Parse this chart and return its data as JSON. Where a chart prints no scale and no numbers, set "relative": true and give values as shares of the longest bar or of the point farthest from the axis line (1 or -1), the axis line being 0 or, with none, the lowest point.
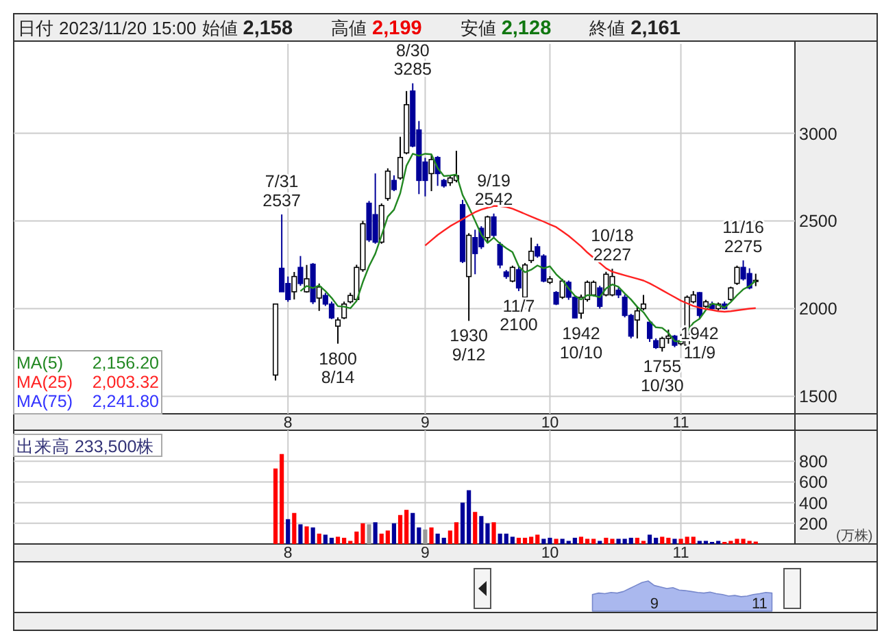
{
  "chart_data": [
    {
      "type": "candlestick",
      "annotations": [
        "日付 2023/11/20 15:00",
        "始値 2,158",
        "高値 2,199",
        "安値 2,128",
        "終値 2,161",
        {
          "text": "7/31\n2537",
          "y": 2537
        },
        {
          "text": "1800\n8/14",
          "y": 1800
        },
        {
          "text": "8/30\n3285",
          "y": 3285
        },
        {
          "text": "1930\n9/12",
          "y": 1930
        },
        {
          "text": "9/19\n2542",
          "y": 2542
        },
        {
          "text": "1942\n10/10",
          "y": 1942
        },
        {
          "text": "10/18\n2227",
          "y": 2227
        },
        {
          "text": "1755\n10/30",
          "y": 1755
        },
        {
          "text": "11/7\n2100",
          "y": 2100
        },
        {
          "text": "1942\n11/9",
          "y": 1942
        },
        {
          "text": "11/16\n2275",
          "y": 2275
        }
      ],
      "categories": [
        null,
        null,
        "8",
        null,
        null,
        null,
        null,
        null,
        null,
        null,
        null,
        null,
        null,
        null,
        null,
        null,
        null,
        null,
        null,
        null,
        null,
        null,
        null,
        null,
        "9",
        null,
        null,
        null,
        null,
        null,
        null,
        null,
        null,
        null,
        null,
        null,
        null,
        null,
        null,
        null,
        null,
        null,
        null,
        null,
        "10",
        null,
        null,
        null,
        null,
        null,
        null,
        null,
        null,
        null,
        null,
        null,
        null,
        null,
        null,
        null,
        null,
        null,
        null,
        null,
        null,
        "11",
        null,
        null,
        null,
        null,
        null,
        null,
        null,
        null,
        null,
        null,
        null,
        null
      ],
      "ohlc": [
        [
          1621,
          2026,
          1590,
          2026
        ],
        [
          2230,
          2537,
          2096,
          2096
        ],
        [
          2143,
          2183,
          2039,
          2052
        ],
        [
          2096,
          2209,
          2052,
          2183
        ],
        [
          2235,
          2300,
          2130,
          2143
        ],
        [
          2096,
          2249,
          2091,
          2170
        ],
        [
          2253,
          2260,
          2026,
          2039
        ],
        [
          2060,
          2143,
          1987,
          2123
        ],
        [
          2075,
          2090,
          2015,
          2026
        ],
        [
          2026,
          2040,
          1940,
          1947
        ],
        [
          1900,
          1950,
          1800,
          1935
        ],
        [
          1947,
          2040,
          1940,
          2026
        ],
        [
          2039,
          2090,
          2030,
          2075
        ],
        [
          2052,
          2250,
          2045,
          2235
        ],
        [
          2222,
          2500,
          2210,
          2484
        ],
        [
          2601,
          2614,
          2380,
          2392
        ],
        [
          2536,
          2771,
          2370,
          2379
        ],
        [
          2379,
          2600,
          2370,
          2588
        ],
        [
          2628,
          2800,
          2615,
          2784
        ],
        [
          2731,
          2760,
          2670,
          2679
        ],
        [
          2745,
          2980,
          2735,
          2862
        ],
        [
          2888,
          3241,
          2880,
          3163
        ],
        [
          3241,
          3285,
          2920,
          2927
        ],
        [
          3019,
          3070,
          2653,
          2731
        ],
        [
          2836,
          2860,
          2640,
          2731
        ],
        [
          2770,
          2880,
          2670,
          2850
        ],
        [
          2862,
          2870,
          2700,
          2770
        ],
        [
          2731,
          2740,
          2690,
          2700
        ],
        [
          2718,
          2760,
          2700,
          2745
        ],
        [
          2731,
          2900,
          2720,
          2758
        ],
        [
          2593,
          2620,
          2260,
          2269
        ],
        [
          2183,
          2430,
          1930,
          2418
        ],
        [
          2405,
          2450,
          2196,
          2314
        ],
        [
          2458,
          2470,
          2340,
          2353
        ],
        [
          2405,
          2530,
          2380,
          2523
        ],
        [
          2523,
          2542,
          2400,
          2418
        ],
        [
          2366,
          2380,
          2230,
          2249
        ],
        [
          2209,
          2220,
          2170,
          2183
        ],
        [
          2157,
          2245,
          2150,
          2235
        ],
        [
          2222,
          2240,
          2100,
          2118
        ],
        [
          2065,
          2260,
          2030,
          2249
        ],
        [
          2274,
          2405,
          2260,
          2327
        ],
        [
          2353,
          2370,
          2290,
          2300
        ],
        [
          2300,
          2310,
          2150,
          2157
        ],
        [
          2150,
          2185,
          2140,
          2170
        ],
        [
          2092,
          2100,
          2020,
          2026
        ],
        [
          2065,
          2170,
          2055,
          2157
        ],
        [
          2150,
          2160,
          2050,
          2065
        ],
        [
          2065,
          2070,
          1945,
          1947
        ],
        [
          1974,
          2080,
          1942,
          2065
        ],
        [
          2052,
          2160,
          2040,
          2150
        ],
        [
          2078,
          2160,
          2070,
          2150
        ],
        [
          2118,
          2130,
          2000,
          2013
        ],
        [
          2078,
          2210,
          2070,
          2196
        ],
        [
          2078,
          2227,
          2070,
          2183
        ],
        [
          2105,
          2120,
          2060,
          2078
        ],
        [
          2065,
          2080,
          1950,
          1961
        ],
        [
          1961,
          1970,
          1830,
          1843
        ],
        [
          1935,
          2013,
          1830,
          1987
        ],
        [
          2000,
          2078,
          1990,
          2026
        ],
        [
          1922,
          1930,
          1810,
          1830
        ],
        [
          1817,
          1830,
          1770,
          1778
        ],
        [
          1778,
          1840,
          1755,
          1830
        ],
        [
          1830,
          1880,
          1800,
          1843
        ],
        [
          1843,
          1850,
          1780,
          1791
        ],
        [
          1800,
          1870,
          1790,
          1817
        ],
        [
          1791,
          2075,
          1785,
          2065
        ],
        [
          2039,
          2100,
          2030,
          2078
        ],
        [
          2091,
          2095,
          1942,
          1961
        ],
        [
          2013,
          2050,
          2005,
          2039
        ],
        [
          2026,
          2040,
          1990,
          2000
        ],
        [
          2000,
          2035,
          1990,
          2026
        ],
        [
          2026,
          2040,
          1995,
          2000
        ],
        [
          2052,
          2125,
          2045,
          2118
        ],
        [
          2144,
          2245,
          2135,
          2235
        ],
        [
          2235,
          2275,
          2160,
          2170
        ],
        [
          2200,
          2230,
          2110,
          2118
        ],
        [
          2158,
          2199,
          2128,
          2161
        ]
      ],
      "colors": [
        "#ffffff",
        "#000099",
        "#000099",
        "#ffffff",
        "#000099",
        "#ffffff",
        "#000099",
        "#ffffff",
        "#000099",
        "#000099",
        "#ffffff",
        "#ffffff",
        "#ffffff",
        "#ffffff",
        "#ffffff",
        "#000099",
        "#000099",
        "#ffffff",
        "#ffffff",
        "#000099",
        "#ffffff",
        "#ffffff",
        "#000099",
        "#000099",
        "#000099",
        "#ffffff",
        "#000099",
        "#000099",
        "#ffffff",
        "#ffffff",
        "#000099",
        "#ffffff",
        "#000099",
        "#000099",
        "#ffffff",
        "#000099",
        "#000099",
        "#000099",
        "#ffffff",
        "#000099",
        "#ffffff",
        "#ffffff",
        "#000099",
        "#000099",
        "#ffffff",
        "#000099",
        "#ffffff",
        "#000099",
        "#000099",
        "#ffffff",
        "#ffffff",
        "#ffffff",
        "#000099",
        "#ffffff",
        "#ffffff",
        "#000099",
        "#000099",
        "#000099",
        "#ffffff",
        "#ffffff",
        "#000099",
        "#000099",
        "#ffffff",
        "#ffffff",
        "#000099",
        "#ffffff",
        "#ffffff",
        "#ffffff",
        "#000099",
        "#ffffff",
        "#000099",
        "#ffffff",
        "#000099",
        "#ffffff",
        "#ffffff",
        "#000099",
        "#000099",
        "#ffffff"
      ],
      "series": [
        {
          "name": "MA(5) 2,156.20",
          "type": "line",
          "color": "#228822",
          "values": [
            null,
            null,
            null,
            null,
            2100,
            2129,
            2117,
            2132,
            2100,
            2061,
            2014,
            2011,
            2002,
            2044,
            2151,
            2242,
            2313,
            2416,
            2525,
            2564,
            2658,
            2815,
            2883,
            2872,
            2883,
            2880,
            2802,
            2756,
            2759,
            2765,
            2648,
            2578,
            2501,
            2422,
            2375,
            2405,
            2371,
            2345,
            2322,
            2241,
            2207,
            2222,
            2246,
            2230,
            2241,
            2196,
            2162,
            2115,
            2073,
            2052,
            2077,
            2075,
            2065,
            2115,
            2138,
            2124,
            2086,
            2052,
            2010,
            1979,
            1929,
            1893,
            1890,
            1861,
            1814,
            1812,
            1869,
            1919,
            1942,
            1992,
            2029,
            2021,
            2005,
            2037,
            2076,
            2110,
            2128,
            2160
          ]
        },
        {
          "name": "MA(25) 2,003.32",
          "type": "line",
          "color": "#ff2222",
          "values": [
            null,
            null,
            null,
            null,
            null,
            null,
            null,
            null,
            null,
            null,
            null,
            null,
            null,
            null,
            null,
            null,
            null,
            null,
            null,
            null,
            null,
            null,
            null,
            null,
            2360,
            2390,
            2420,
            2445,
            2470,
            2490,
            2510,
            2530,
            2550,
            2565,
            2575,
            2585,
            2585,
            2580,
            2570,
            2555,
            2540,
            2525,
            2510,
            2496,
            2480,
            2465,
            2440,
            2415,
            2385,
            2355,
            2320,
            2290,
            2260,
            2230,
            2210,
            2200,
            2190,
            2180,
            2170,
            2160,
            2144,
            2125,
            2105,
            2085,
            2065,
            2045,
            2030,
            2015,
            2005,
            1998,
            1992,
            1985,
            1982,
            1985,
            1990,
            1995,
            2000,
            2003
          ]
        },
        {
          "name": "MA(75) 2,241.80",
          "type": "line",
          "color": "#3333ff",
          "values": [
            null,
            null,
            null,
            null,
            null,
            null,
            null,
            null,
            null,
            null,
            null,
            null,
            null,
            null,
            null,
            null,
            null,
            null,
            null,
            null,
            null,
            null,
            null,
            null,
            null,
            null,
            null,
            null,
            null,
            null,
            null,
            null,
            null,
            null,
            null,
            null,
            null,
            null,
            null,
            null,
            null,
            null,
            null,
            null,
            null,
            null,
            null,
            null,
            null,
            null,
            null,
            null,
            null,
            null,
            null,
            null,
            null,
            null,
            null,
            null,
            null,
            null,
            null,
            null,
            null,
            null,
            null,
            null,
            null,
            null,
            null,
            null,
            null,
            null,
            null,
            null,
            null,
            null
          ]
        }
      ],
      "ylim": [
        1400,
        3510
      ],
      "yticks": [
        1500,
        2000,
        2500,
        3000
      ],
      "grid": true,
      "legend": "bottom left"
    },
    {
      "type": "bar",
      "annotations": [
        "出来高 233,500株"
      ],
      "ylabel": "(万株)",
      "categories": [
        null,
        null,
        "8",
        null,
        null,
        null,
        null,
        null,
        null,
        null,
        null,
        null,
        null,
        null,
        null,
        null,
        null,
        null,
        null,
        null,
        null,
        null,
        null,
        null,
        "9",
        null,
        null,
        null,
        null,
        null,
        null,
        null,
        null,
        null,
        null,
        null,
        null,
        null,
        null,
        null,
        null,
        null,
        null,
        null,
        "10",
        null,
        null,
        null,
        null,
        null,
        null,
        null,
        null,
        null,
        null,
        null,
        null,
        null,
        null,
        null,
        null,
        null,
        null,
        null,
        null,
        "11",
        null,
        null,
        null,
        null,
        null,
        null,
        null,
        null,
        null,
        null,
        null,
        null
      ],
      "values": [
        730,
        870,
        240,
        300,
        190,
        170,
        160,
        100,
        90,
        60,
        70,
        60,
        30,
        120,
        200,
        190,
        210,
        100,
        130,
        200,
        280,
        330,
        300,
        160,
        140,
        160,
        100,
        60,
        130,
        210,
        400,
        520,
        310,
        270,
        200,
        210,
        100,
        100,
        70,
        60,
        60,
        70,
        90,
        50,
        60,
        50,
        50,
        30,
        60,
        70,
        50,
        50,
        30,
        60,
        50,
        50,
        50,
        60,
        60,
        30,
        90,
        60,
        70,
        60,
        50,
        50,
        70,
        70,
        30,
        30,
        20,
        30,
        20,
        30,
        50,
        50,
        30,
        23
      ],
      "colors": [
        "#ff0000",
        "#ff0000",
        "#000099",
        "#ff0000",
        "#000099",
        "#ff0000",
        "#000099",
        "#ff0000",
        "#000099",
        "#000099",
        "#ff0000",
        "#ff0000",
        "#ff0000",
        "#ff0000",
        "#ff0000",
        "#999999",
        "#000099",
        "#ff0000",
        "#ff0000",
        "#000099",
        "#ff0000",
        "#ff0000",
        "#000099",
        "#000099",
        "#999999",
        "#ff0000",
        "#000099",
        "#000099",
        "#ff0000",
        "#ff0000",
        "#000099",
        "#000099",
        "#ff0000",
        "#000099",
        "#000099",
        "#ff0000",
        "#000099",
        "#000099",
        "#000099",
        "#ff0000",
        "#ff0000",
        "#ff0000",
        "#ff0000",
        "#000099",
        "#000099",
        "#ff0000",
        "#000099",
        "#000099",
        "#000099",
        "#ff0000",
        "#ff0000",
        "#ff0000",
        "#000099",
        "#ff0000",
        "#ff0000",
        "#000099",
        "#000099",
        "#000099",
        "#ff0000",
        "#ff0000",
        "#000099",
        "#000099",
        "#ff0000",
        "#ff0000",
        "#000099",
        "#ff0000",
        "#ff0000",
        "#ff0000",
        "#000099",
        "#000099",
        "#000099",
        "#000099",
        "#ff0000",
        "#ff0000",
        "#ff0000",
        "#ff0000",
        "#ff0000",
        "#ff0000"
      ],
      "ylim": [
        0,
        1100
      ],
      "yticks": [
        200,
        400,
        600,
        800
      ],
      "grid": true
    },
    {
      "type": "area",
      "relative": true,
      "color": "#aab8ee",
      "categories": [
        null,
        null,
        null,
        null,
        null,
        null,
        null,
        null,
        null,
        null,
        "9",
        null,
        null,
        null,
        null,
        null,
        null,
        null,
        null,
        null,
        null,
        null,
        null,
        null,
        null,
        null,
        null,
        "11",
        null,
        null
      ],
      "values": [
        0.55,
        0.6,
        0.58,
        0.62,
        0.6,
        0.65,
        0.75,
        0.85,
        0.95,
        1.0,
        0.85,
        0.8,
        0.75,
        0.78,
        0.7,
        0.68,
        0.65,
        0.62,
        0.6,
        0.63,
        0.58,
        0.55,
        0.5,
        0.52,
        0.48,
        0.5,
        0.55,
        0.58,
        0.62,
        0.6
      ]
    }
  ]
}
